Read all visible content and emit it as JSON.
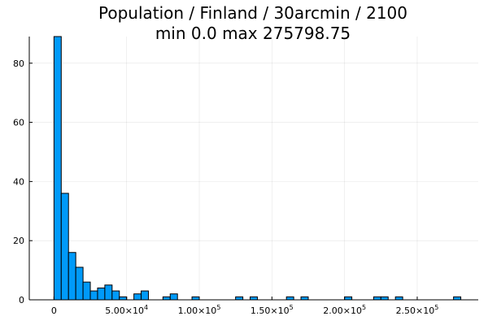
{
  "chart_data": {
    "type": "bar",
    "title_line1": "Population / Finland / 30arcmin / 2100",
    "title_line2": "min 0.0  max 275798.75",
    "xlabel": "",
    "ylabel": "",
    "bin_width": 5000,
    "xlim": [
      -17000,
      292000
    ],
    "ylim": [
      0,
      89
    ],
    "x_ticks": [
      {
        "value": 0,
        "label": "0"
      },
      {
        "value": 50000,
        "label": "5.00×10",
        "exp": "4"
      },
      {
        "value": 100000,
        "label": "1.00×10",
        "exp": "5"
      },
      {
        "value": 150000,
        "label": "1.50×10",
        "exp": "5"
      },
      {
        "value": 200000,
        "label": "2.00×10",
        "exp": "5"
      },
      {
        "value": 250000,
        "label": "2.50×10",
        "exp": "5"
      }
    ],
    "y_ticks": [
      0,
      20,
      40,
      60,
      80
    ],
    "bins": [
      {
        "x0": 0,
        "count": 89
      },
      {
        "x0": 5000,
        "count": 36
      },
      {
        "x0": 10000,
        "count": 16
      },
      {
        "x0": 15000,
        "count": 11
      },
      {
        "x0": 20000,
        "count": 6
      },
      {
        "x0": 25000,
        "count": 3
      },
      {
        "x0": 30000,
        "count": 4
      },
      {
        "x0": 35000,
        "count": 5
      },
      {
        "x0": 40000,
        "count": 3
      },
      {
        "x0": 45000,
        "count": 1
      },
      {
        "x0": 55000,
        "count": 2
      },
      {
        "x0": 60000,
        "count": 3
      },
      {
        "x0": 75000,
        "count": 1
      },
      {
        "x0": 80000,
        "count": 2
      },
      {
        "x0": 95000,
        "count": 1
      },
      {
        "x0": 125000,
        "count": 1
      },
      {
        "x0": 135000,
        "count": 1
      },
      {
        "x0": 160000,
        "count": 1
      },
      {
        "x0": 170000,
        "count": 1
      },
      {
        "x0": 200000,
        "count": 1
      },
      {
        "x0": 220000,
        "count": 1
      },
      {
        "x0": 225000,
        "count": 1
      },
      {
        "x0": 235000,
        "count": 1
      },
      {
        "x0": 275000,
        "count": 1
      }
    ],
    "grid": true,
    "legend": "none",
    "colors": {
      "bar": "#009af9",
      "bar_edge": "#000000"
    }
  }
}
